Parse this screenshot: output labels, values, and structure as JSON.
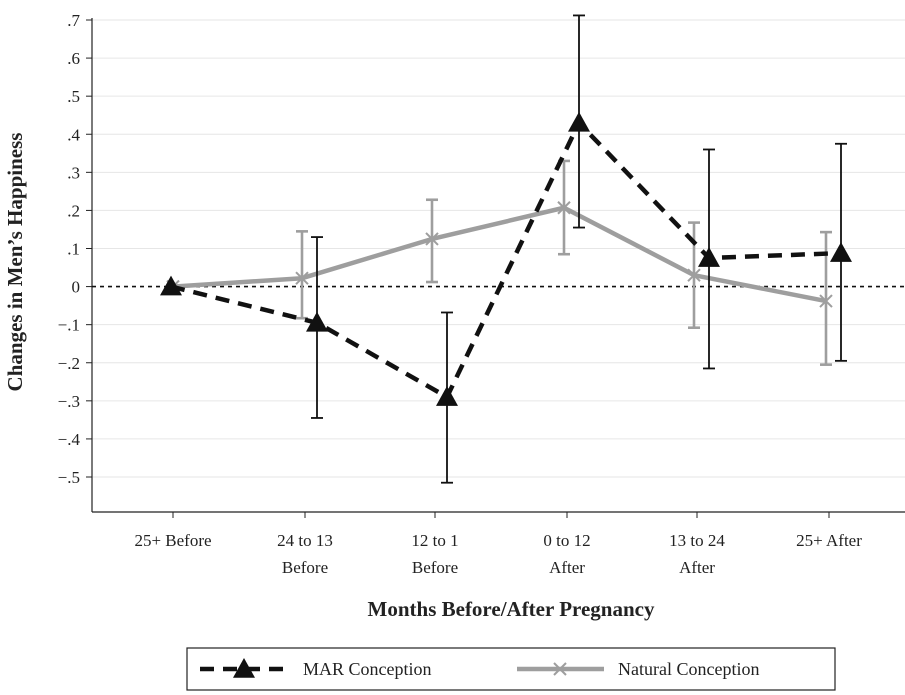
{
  "chart_data": {
    "type": "line",
    "title": "",
    "xlabel": "Months Before/After Pregnancy",
    "ylabel": "Changes in Men’s Happiness",
    "categories": [
      [
        "25+ Before"
      ],
      [
        "24 to 13",
        "Before"
      ],
      [
        "12 to 1",
        "Before"
      ],
      [
        "0 to 12",
        "After"
      ],
      [
        "13 to 24",
        "After"
      ],
      [
        "25+ After"
      ]
    ],
    "ylim": [
      -0.5,
      0.7
    ],
    "yticks": [
      0.7,
      0.6,
      0.5,
      0.4,
      0.3,
      0.2,
      0.1,
      0,
      -0.1,
      -0.2,
      -0.3,
      -0.4,
      -0.5
    ],
    "ytick_labels": [
      ".7",
      ".6",
      ".5",
      ".4",
      ".3",
      ".2",
      ".1",
      "0",
      "−.1",
      "−.2",
      "−.3",
      "−.4",
      "−.5"
    ],
    "reference_line_y": 0,
    "grid": true,
    "legend_position": "bottom",
    "series": [
      {
        "name": "MAR Conception",
        "style": "dashed",
        "marker": "triangle",
        "color": "#111111",
        "values": [
          0.0,
          -0.095,
          -0.29,
          0.43,
          0.075,
          0.088
        ],
        "ci_low": [
          null,
          -0.345,
          -0.515,
          0.155,
          -0.215,
          -0.195
        ],
        "ci_high": [
          null,
          0.13,
          -0.068,
          0.712,
          0.36,
          0.375
        ]
      },
      {
        "name": "Natural Conception",
        "style": "solid",
        "marker": "x",
        "color": "#9e9e9e",
        "values": [
          0.0,
          0.022,
          0.125,
          0.207,
          0.03,
          -0.038
        ],
        "ci_low": [
          null,
          -0.083,
          0.012,
          0.085,
          -0.108,
          -0.205
        ],
        "ci_high": [
          null,
          0.145,
          0.228,
          0.33,
          0.168,
          0.143
        ]
      }
    ]
  }
}
